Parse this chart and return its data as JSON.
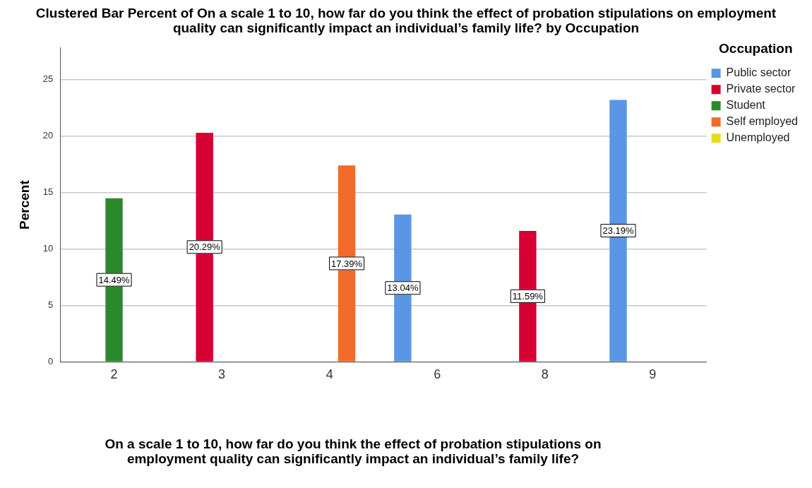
{
  "chart_data": {
    "type": "bar",
    "title": "Clustered Bar Percent of On a scale 1 to 10, how far do you think the effect of probation stipulations on employment quality can significantly impact an individual’s family life? by Occupation",
    "xlabel": "On a scale 1 to 10, how far do you think the effect of probation stipulations on employment quality can significantly impact an individual’s family life?",
    "ylabel": "Percent",
    "legend_title": "Occupation",
    "categories": [
      "2",
      "3",
      "4",
      "6",
      "8",
      "9"
    ],
    "series": [
      {
        "name": "Public sector",
        "color": "#5a96e3",
        "values": [
          null,
          null,
          null,
          13.04,
          null,
          23.19
        ],
        "value_labels": [
          null,
          null,
          null,
          "13.04%",
          null,
          "23.19%"
        ]
      },
      {
        "name": "Private sector",
        "color": "#d70033",
        "values": [
          null,
          20.29,
          null,
          null,
          11.59,
          null
        ],
        "value_labels": [
          null,
          "20.29%",
          null,
          null,
          "11.59%",
          null
        ]
      },
      {
        "name": "Student",
        "color": "#2b8a2b",
        "values": [
          14.49,
          null,
          null,
          null,
          null,
          null
        ],
        "value_labels": [
          "14.49%",
          null,
          null,
          null,
          null,
          null
        ]
      },
      {
        "name": "Self employed",
        "color": "#f26b2b",
        "values": [
          null,
          null,
          17.39,
          null,
          null,
          null
        ],
        "value_labels": [
          null,
          null,
          "17.39%",
          null,
          null,
          null
        ]
      },
      {
        "name": "Unemployed",
        "color": "#e6dc1e",
        "values": [
          null,
          null,
          null,
          null,
          null,
          null
        ]
      }
    ],
    "ylim": [
      0,
      27.8
    ],
    "yticks": [
      0,
      5,
      10,
      15,
      20,
      25
    ],
    "grid": "y",
    "legend": "right"
  }
}
